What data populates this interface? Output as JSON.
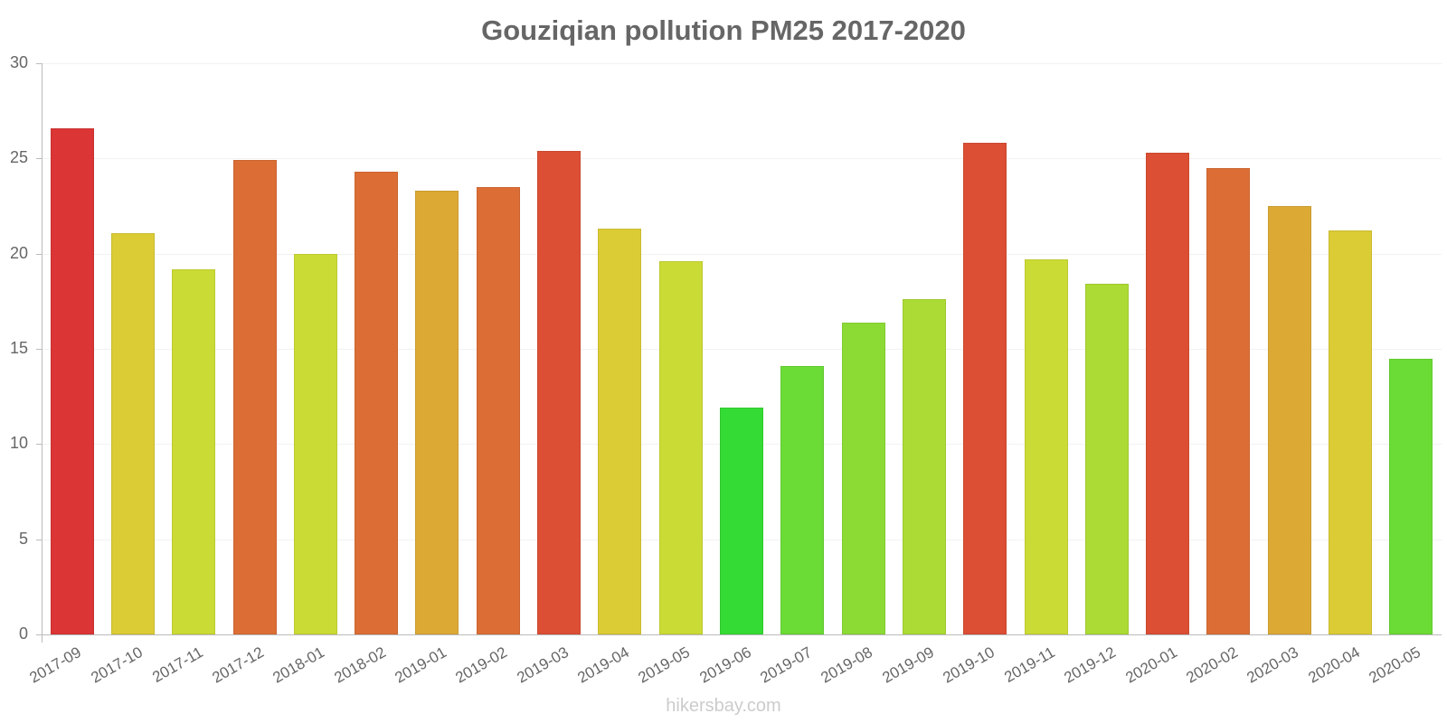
{
  "title": "Gouziqian pollution PM25 2017-2020",
  "watermark": "hikersbay.com",
  "y_ticks": [
    "0",
    "5",
    "10",
    "15",
    "20",
    "25",
    "30"
  ],
  "chart_data": {
    "type": "bar",
    "title": "Gouziqian pollution PM25 2017-2020",
    "xlabel": "",
    "ylabel": "",
    "ylim": [
      0,
      30
    ],
    "yticks": [
      0,
      5,
      10,
      15,
      20,
      25,
      30
    ],
    "grid": true,
    "legend": null,
    "categories": [
      "2017-09",
      "2017-10",
      "2017-11",
      "2017-12",
      "2018-01",
      "2018-02",
      "2019-01",
      "2019-02",
      "2019-03",
      "2019-04",
      "2019-05",
      "2019-06",
      "2019-07",
      "2019-08",
      "2019-09",
      "2019-10",
      "2019-11",
      "2019-12",
      "2020-01",
      "2020-02",
      "2020-03",
      "2020-04",
      "2020-05"
    ],
    "values": [
      26.6,
      21.1,
      19.2,
      24.9,
      20.0,
      24.3,
      23.3,
      23.5,
      25.4,
      21.3,
      19.6,
      11.9,
      14.1,
      16.4,
      17.6,
      25.8,
      19.7,
      18.4,
      25.3,
      24.5,
      22.5,
      21.2,
      14.5
    ],
    "colors": [
      "#db3535",
      "#dbcb35",
      "#cbdb35",
      "#dc6e35",
      "#cbdb35",
      "#dc6e35",
      "#dca935",
      "#dc6e35",
      "#dc4f35",
      "#dbcb35",
      "#cbdb35",
      "#35db35",
      "#6bdb35",
      "#8cdb35",
      "#acdb35",
      "#dc4f35",
      "#cbdb35",
      "#acdb35",
      "#dc4f35",
      "#dc6e35",
      "#dca935",
      "#dbcb35",
      "#6bdb35"
    ]
  }
}
